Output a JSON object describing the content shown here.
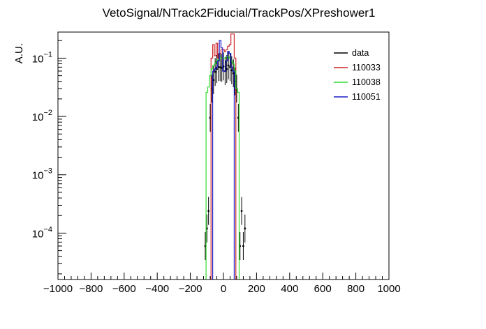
{
  "chart_data": {
    "type": "line",
    "title": "VetoSignal/NTrack2Fiducial/TrackPos/XPreshower1",
    "xlabel": "",
    "ylabel": "A.U.",
    "xlim": [
      -1000,
      1000
    ],
    "ylim": [
      1.6e-05,
      0.28
    ],
    "y_scale": "log",
    "grid": false,
    "legend_position": "top-right",
    "x_tick_labels": [
      "−1000",
      "−800",
      "−600",
      "−400",
      "−200",
      "0",
      "200",
      "400",
      "600",
      "800",
      "1000"
    ],
    "x_tick_values": [
      -1000,
      -800,
      -600,
      -400,
      -200,
      0,
      200,
      400,
      600,
      800,
      1000
    ],
    "y_tick_values": [
      0.0001,
      0.001,
      0.01,
      0.1
    ],
    "y_tick_labels": [
      {
        "base": "10",
        "exp": "−4"
      },
      {
        "base": "10",
        "exp": "−3"
      },
      {
        "base": "10",
        "exp": "−2"
      },
      {
        "base": "10",
        "exp": "−1"
      }
    ],
    "series": [
      {
        "name": "data",
        "color": "#000000",
        "style": "points",
        "x": [
          -110,
          -100,
          -90,
          -80,
          -70,
          -60,
          -50,
          -40,
          -30,
          -20,
          -10,
          0,
          10,
          20,
          30,
          40,
          50,
          60,
          70,
          80,
          90,
          100,
          110,
          120,
          130
        ],
        "y": [
          6e-05,
          0.00012,
          0.00024,
          0.0095,
          0.03,
          0.042,
          0.058,
          0.065,
          0.07,
          0.07,
          0.068,
          0.072,
          0.06,
          0.065,
          0.075,
          0.07,
          0.062,
          0.055,
          0.04,
          0.03,
          0.0095,
          6e-05,
          0.00024,
          6e-05,
          0.00012
        ]
      },
      {
        "name": "110033",
        "color": "#cc2222",
        "style": "step",
        "bin_width": 10,
        "x": [
          -70,
          -60,
          -50,
          -40,
          -30,
          -20,
          -10,
          0,
          10,
          20,
          30,
          40,
          50,
          60,
          70
        ],
        "y": [
          0.1,
          0.17,
          0.11,
          0.18,
          0.1,
          0.12,
          0.14,
          0.14,
          0.13,
          0.14,
          0.16,
          0.17,
          0.26,
          0.26,
          0.1
        ]
      },
      {
        "name": "110038",
        "color": "#33dd33",
        "style": "step",
        "bin_width": 10,
        "x": [
          -100,
          -90,
          -80,
          -70,
          -60,
          -50,
          -40,
          -30,
          -20,
          -10,
          0,
          10,
          20,
          30,
          40,
          50,
          60,
          70,
          80,
          90
        ],
        "y": [
          0.026,
          0.032,
          0.05,
          0.065,
          0.075,
          0.08,
          0.09,
          0.095,
          0.1,
          0.1,
          0.1,
          0.1,
          0.105,
          0.105,
          0.1,
          0.09,
          0.08,
          0.06,
          0.03,
          0.026
        ]
      },
      {
        "name": "110051",
        "color": "#1a1acc",
        "style": "step",
        "bin_width": 10,
        "x": [
          -60,
          -50,
          -40,
          -30,
          -20,
          -10,
          0,
          10,
          20,
          30,
          40,
          50,
          60
        ],
        "y": [
          0.06,
          0.065,
          0.07,
          0.09,
          0.2,
          0.15,
          0.06,
          0.06,
          0.09,
          0.13,
          0.12,
          0.07,
          0.06
        ]
      }
    ]
  }
}
